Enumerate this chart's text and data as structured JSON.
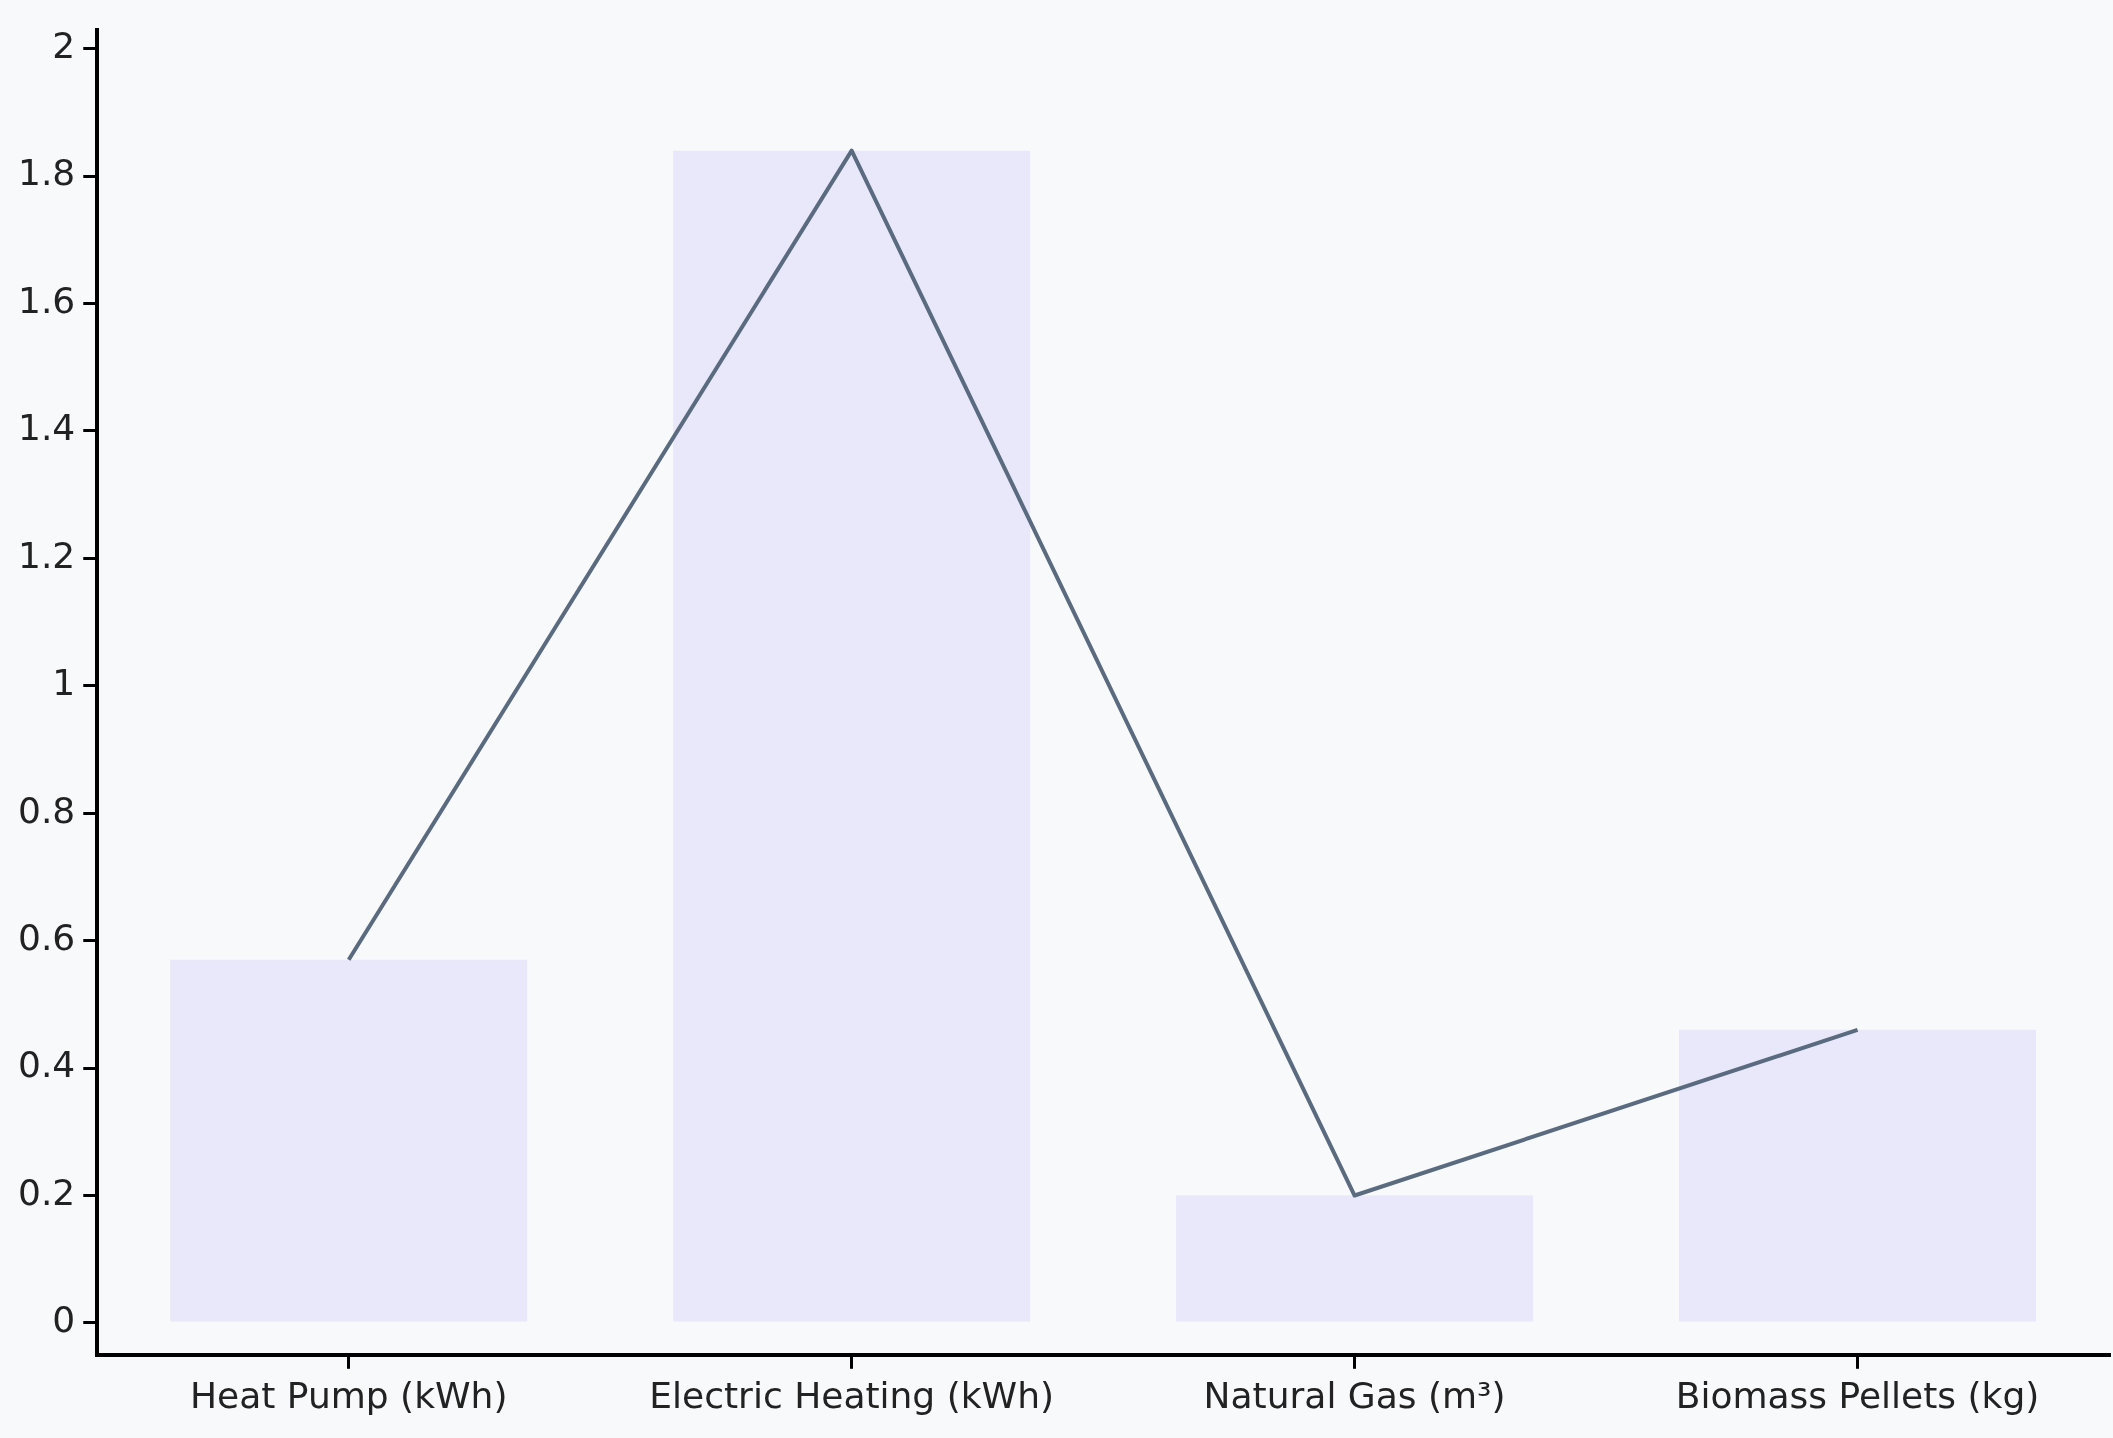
{
  "chart_data": {
    "type": "bar",
    "categories": [
      "Heat Pump (kWh)",
      "Electric Heating (kWh)",
      "Natural Gas (m³)",
      "Biomass Pellets (kg)"
    ],
    "series": [
      {
        "color": "#e8e8fa",
        "values": [
          0.57,
          1.84,
          0.2,
          0.46
        ]
      },
      {
        "type": "line",
        "color": "#5a6b80",
        "values": [
          0.57,
          1.84,
          0.2,
          0.46
        ]
      }
    ],
    "ylim": [
      -0.05,
      2.03
    ],
    "yticks": [
      0,
      0.2,
      0.4,
      0.6,
      0.8,
      1,
      1.2,
      1.4,
      1.6,
      1.8,
      2
    ],
    "marker": "none"
  }
}
